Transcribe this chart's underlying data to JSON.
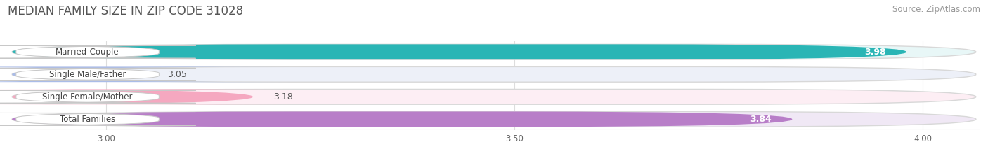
{
  "title": "MEDIAN FAMILY SIZE IN ZIP CODE 31028",
  "source": "Source: ZipAtlas.com",
  "categories": [
    "Married-Couple",
    "Single Male/Father",
    "Single Female/Mother",
    "Total Families"
  ],
  "values": [
    3.98,
    3.05,
    3.18,
    3.84
  ],
  "bar_colors": [
    "#2ab5b5",
    "#aabce8",
    "#f5a8c0",
    "#b87ec8"
  ],
  "bar_bg_colors": [
    "#e8f7f7",
    "#edf0f8",
    "#fdeef4",
    "#f0e8f5"
  ],
  "label_values": [
    "3.98",
    "3.05",
    "3.18",
    "3.84"
  ],
  "xmin": 2.88,
  "xmax": 4.07,
  "xticks": [
    3.0,
    3.5,
    4.0
  ],
  "xtick_labels": [
    "3.00",
    "3.50",
    "4.00"
  ],
  "title_fontsize": 12,
  "source_fontsize": 8.5,
  "label_fontsize": 9,
  "category_fontsize": 8.5,
  "background_color": "#ffffff"
}
